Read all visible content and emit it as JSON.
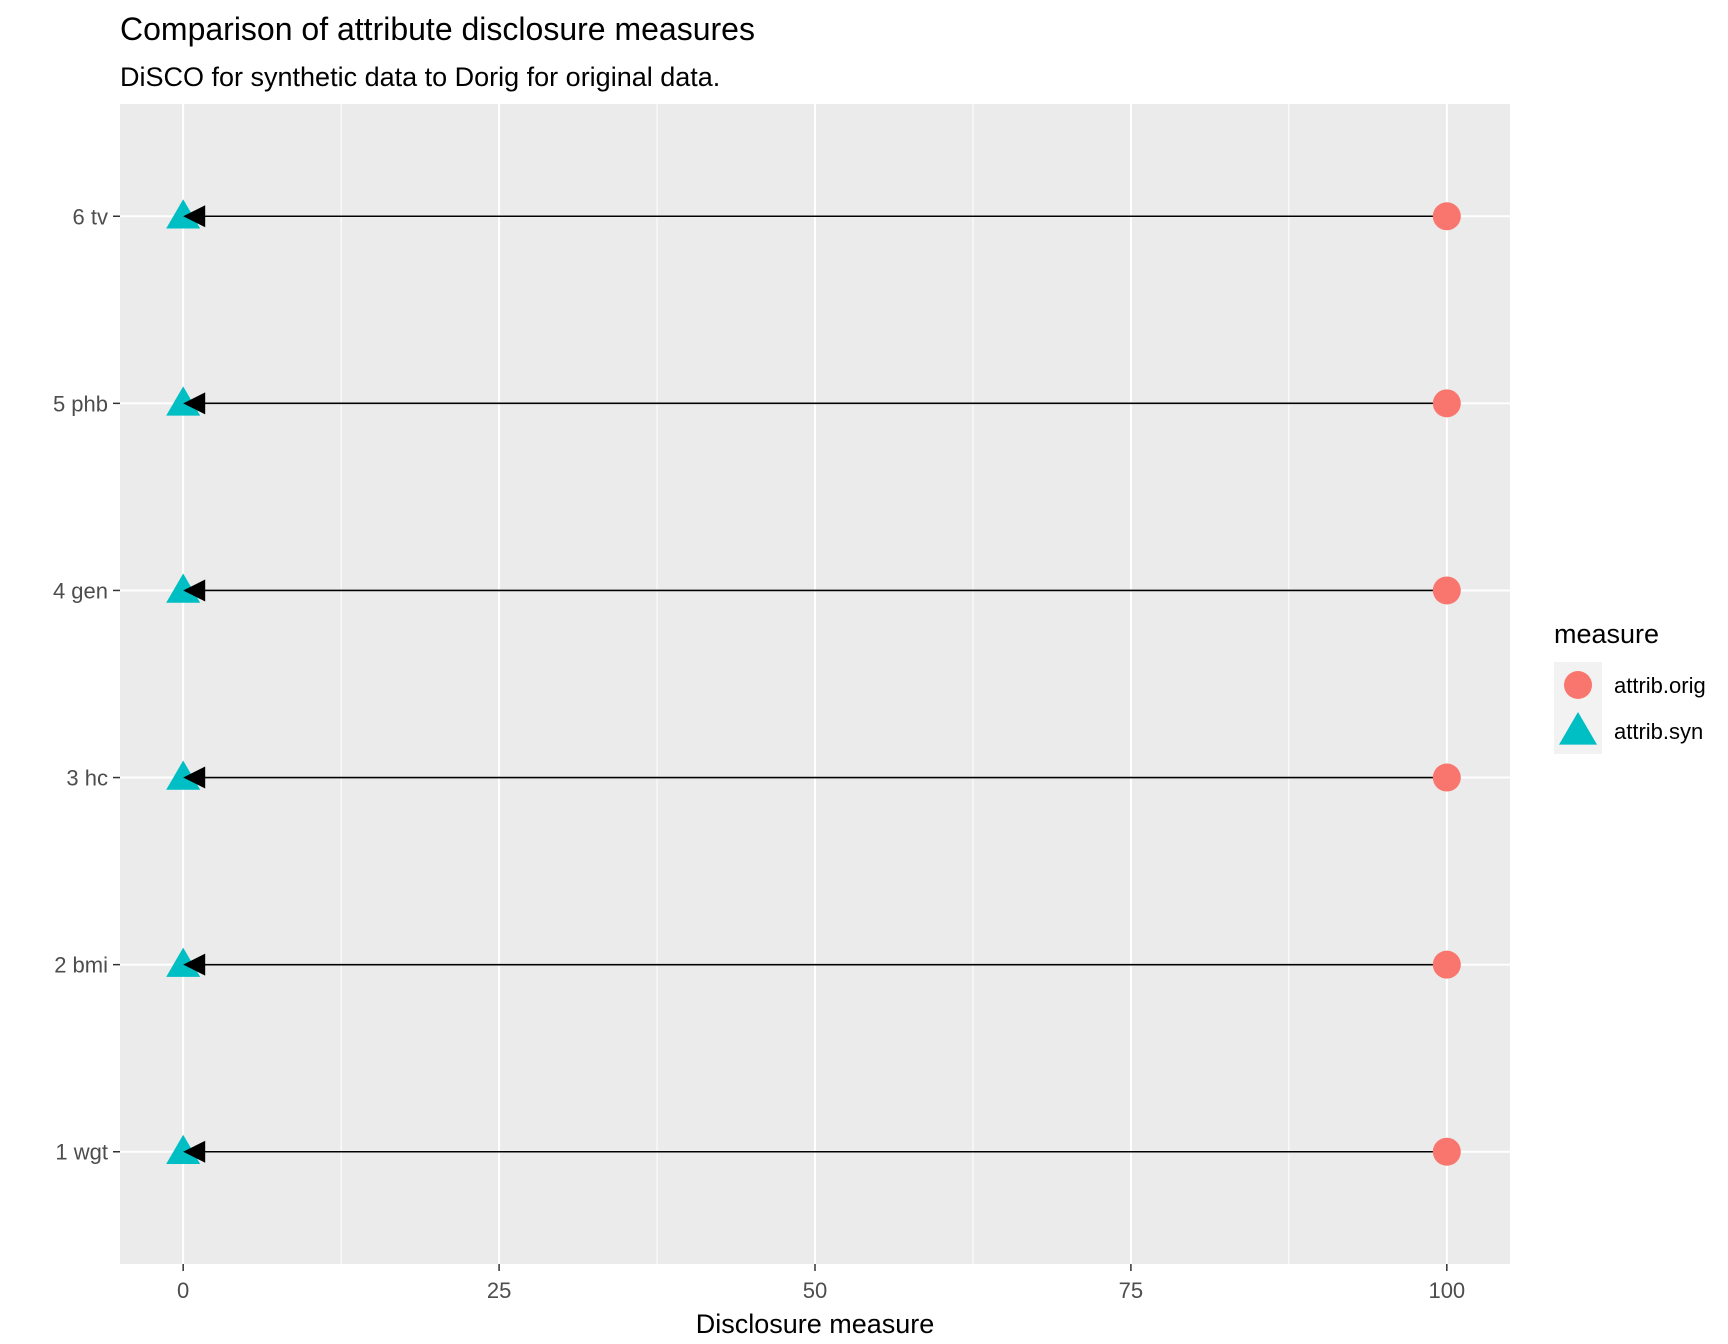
{
  "chart_data": {
    "type": "scatter",
    "title": "Comparison of attribute disclosure measures",
    "subtitle": "DiSCO for synthetic data  to Dorig for original data.",
    "xlabel": "Disclosure measure",
    "ylabel": "",
    "xlim": [
      -5,
      105
    ],
    "x_ticks": [
      0,
      25,
      50,
      75,
      100
    ],
    "x_tick_labels": [
      "0",
      "25",
      "50",
      "75",
      "100"
    ],
    "categories": [
      "1 wgt",
      "2 bmi",
      "3 hc",
      "4 gen",
      "5 phb",
      "6 tv"
    ],
    "series": [
      {
        "name": "attrib.orig",
        "values": [
          100,
          100,
          100,
          100,
          100,
          100
        ],
        "color": "#F8766D",
        "shape": "circle"
      },
      {
        "name": "attrib.syn",
        "values": [
          0,
          0,
          0,
          0,
          0,
          0
        ],
        "color": "#00BFC4",
        "shape": "triangle"
      }
    ],
    "arrows": "from attrib.orig to attrib.syn",
    "arrow_color": "#000000",
    "panel_background": "#EBEBEB",
    "grid": true,
    "legend": {
      "title": "measure",
      "position": "right"
    }
  }
}
